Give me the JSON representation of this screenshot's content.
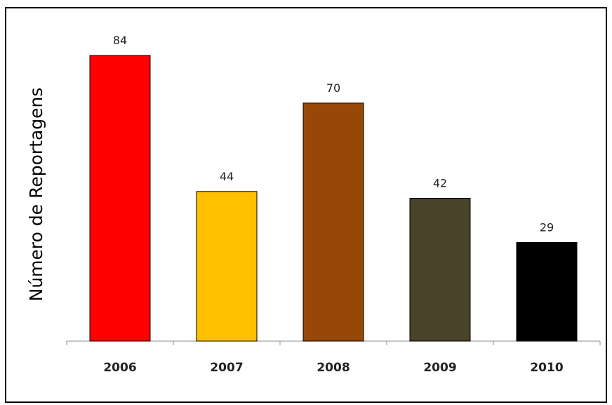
{
  "chart_data": {
    "type": "bar",
    "categories": [
      "2006",
      "2007",
      "2008",
      "2009",
      "2010"
    ],
    "values": [
      84,
      44,
      70,
      42,
      29
    ],
    "data_labels": [
      "84",
      "44",
      "70",
      "42",
      "29"
    ],
    "bar_colors": [
      "#ff0000",
      "#ffc000",
      "#974806",
      "#4a4229",
      "#000000"
    ],
    "title": "",
    "xlabel": "",
    "ylabel": "Número de Reportagens",
    "ylim": [
      0,
      84
    ],
    "grid": false,
    "legend": "none"
  }
}
